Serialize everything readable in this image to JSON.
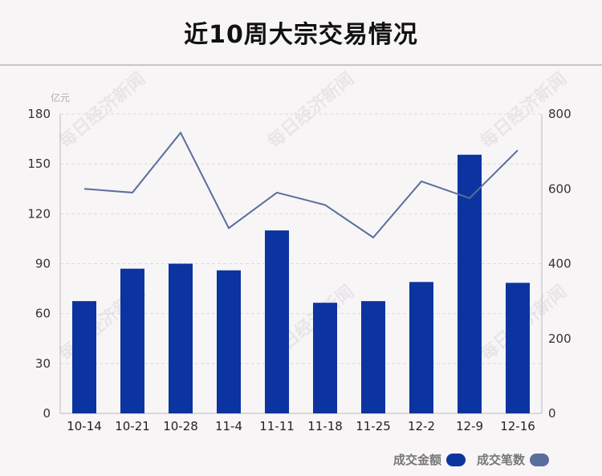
{
  "header": {
    "title": "近10周大宗交易情况"
  },
  "watermark": "每日经济新闻",
  "colors": {
    "bar": "#0b34a0",
    "line": "#5a6e9c",
    "grid": "#dcdadc",
    "axis": "#bdbbbd"
  },
  "chart_data": {
    "type": "bar",
    "title": "近10周大宗交易情况",
    "categories": [
      "10-14",
      "10-21",
      "10-28",
      "11-4",
      "11-11",
      "11-18",
      "11-25",
      "12-2",
      "12-9",
      "12-16"
    ],
    "left_axis": {
      "unit": "亿元",
      "ylim": [
        0,
        180
      ],
      "ticks": [
        0,
        30,
        60,
        90,
        120,
        150,
        180
      ]
    },
    "right_axis": {
      "ylim": [
        0,
        800
      ],
      "ticks": [
        0,
        200,
        400,
        600,
        800
      ]
    },
    "series": [
      {
        "name": "成交金额",
        "type": "bar",
        "axis": "left",
        "values": [
          67.5,
          87,
          90,
          86,
          110,
          66.5,
          67.5,
          79,
          155.5,
          78.5
        ]
      },
      {
        "name": "成交笔数",
        "type": "line",
        "axis": "right",
        "values": [
          600,
          590,
          750,
          495,
          590,
          557,
          470,
          620,
          575,
          703
        ]
      }
    ],
    "grid": true,
    "legend": "bottom-right"
  }
}
